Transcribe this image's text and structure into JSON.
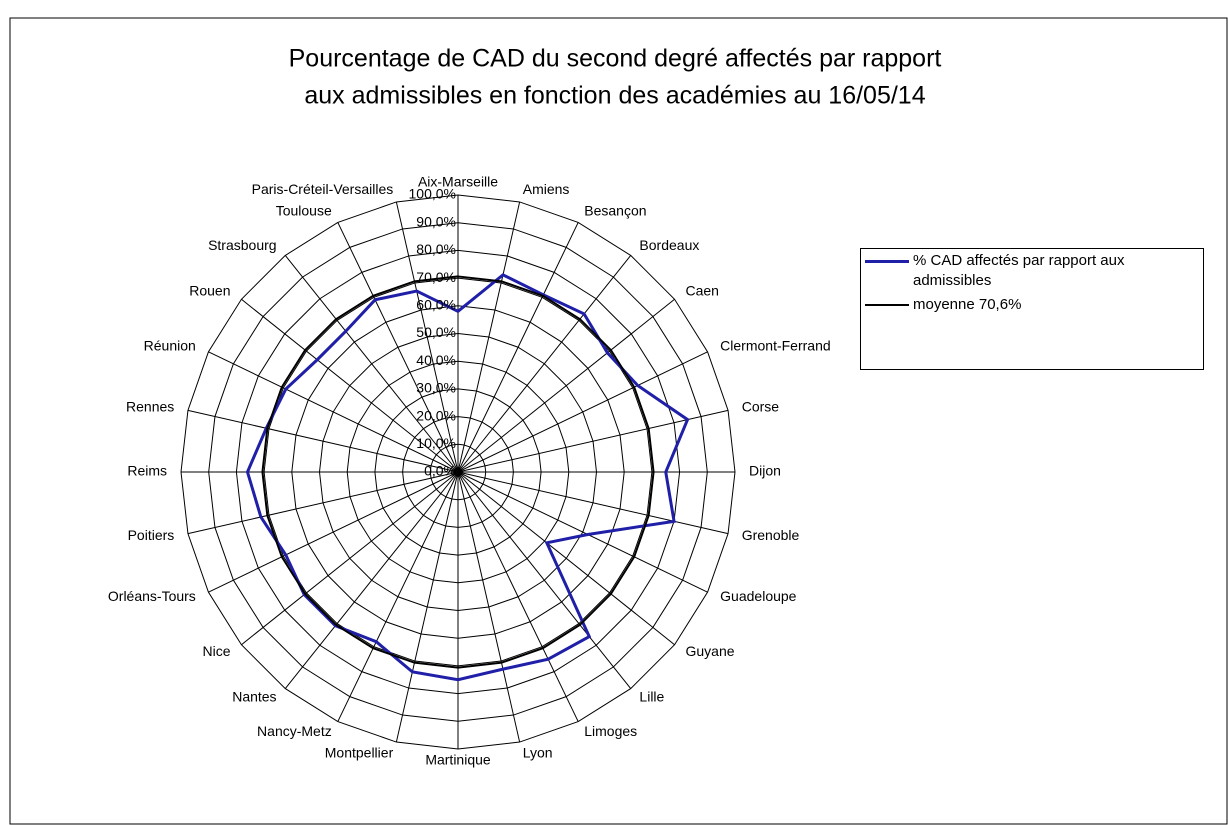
{
  "chart_data": {
    "type": "radar",
    "title": [
      "Pourcentage de CAD du second degré affectés par rapport",
      "aux admissibles en fonction des académies au 16/05/14"
    ],
    "categories": [
      "Aix-Marseille",
      "Amiens",
      "Besançon",
      "Bordeaux",
      "Caen",
      "Clermont-Ferrand",
      "Corse",
      "Dijon",
      "Grenoble",
      "Guadeloupe",
      "Guyane",
      "Lille",
      "Limoges",
      "Lyon",
      "Martinique",
      "Montpellier",
      "Nancy-Metz",
      "Nantes",
      "Nice",
      "Orléans-Tours",
      "Poitiers",
      "Reims",
      "Rennes",
      "Réunion",
      "Rouen",
      "Strasbourg",
      "Toulouse",
      "Paris-Créteil-Versailles"
    ],
    "series": [
      {
        "name": "% CAD affectés par rapport aux admissibles",
        "color": "#1f1fa8",
        "values": [
          58,
          73,
          71,
          73,
          69,
          72,
          85,
          75,
          80,
          52,
          41,
          76,
          75,
          73,
          75,
          74,
          68,
          71,
          71,
          69,
          73,
          76,
          71,
          69,
          65,
          65,
          69,
          67
        ]
      },
      {
        "name": "moyenne 70,6%",
        "color": "#000000",
        "values": [
          70.6,
          70.6,
          70.6,
          70.6,
          70.6,
          70.6,
          70.6,
          70.6,
          70.6,
          70.6,
          70.6,
          70.6,
          70.6,
          70.6,
          70.6,
          70.6,
          70.6,
          70.6,
          70.6,
          70.6,
          70.6,
          70.6,
          70.6,
          70.6,
          70.6,
          70.6,
          70.6,
          70.6
        ]
      }
    ],
    "ylim": [
      0,
      100
    ],
    "yticks": [
      {
        "value": 0,
        "label": "0,0%"
      },
      {
        "value": 10,
        "label": "10,0%"
      },
      {
        "value": 20,
        "label": "20,0%"
      },
      {
        "value": 30,
        "label": "30,0%"
      },
      {
        "value": 40,
        "label": "40,0%"
      },
      {
        "value": 50,
        "label": "50,0%"
      },
      {
        "value": 60,
        "label": "60,0%"
      },
      {
        "value": 70,
        "label": "70,0%"
      },
      {
        "value": 80,
        "label": "80,0%"
      },
      {
        "value": 90,
        "label": "90,0%"
      },
      {
        "value": 100,
        "label": "100,0%"
      }
    ],
    "grid": true,
    "legend": "right"
  }
}
